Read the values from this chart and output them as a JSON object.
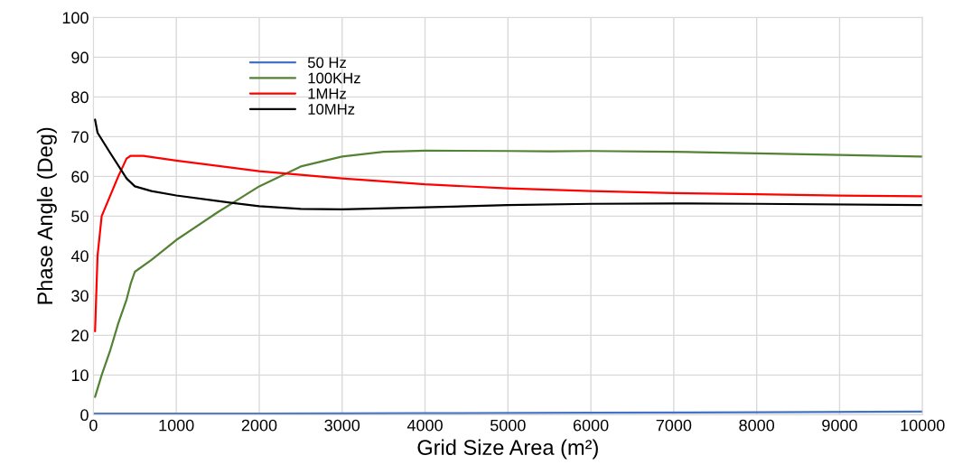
{
  "chart_data": {
    "type": "line",
    "xlabel": "Grid Size Area (m²)",
    "ylabel": "Phase Angle (Deg)",
    "xlim": [
      0,
      10000
    ],
    "ylim": [
      0,
      100
    ],
    "xticks": [
      0,
      1000,
      2000,
      3000,
      4000,
      5000,
      6000,
      7000,
      8000,
      9000,
      10000
    ],
    "yticks": [
      0,
      10,
      20,
      30,
      40,
      50,
      60,
      70,
      80,
      90,
      100
    ],
    "grid": true,
    "legend": "top left",
    "marker": "none",
    "line_style": "solid",
    "series": [
      {
        "name": "50 Hz",
        "color": "#4472c4",
        "x": [
          0,
          2000,
          4000,
          6000,
          8000,
          10000
        ],
        "values": [
          0.3,
          0.3,
          0.4,
          0.5,
          0.6,
          0.8
        ]
      },
      {
        "name": "100KHz",
        "color": "#548235",
        "x": [
          20,
          100,
          200,
          300,
          400,
          450,
          500,
          700,
          1000,
          1500,
          2000,
          2500,
          3000,
          3500,
          4000,
          5000,
          5500,
          6000,
          7000,
          8000,
          9000,
          10000
        ],
        "values": [
          4.5,
          10,
          16,
          23,
          29,
          33,
          36,
          39,
          44,
          51,
          57.5,
          62.5,
          65,
          66.2,
          66.5,
          66.4,
          66.3,
          66.4,
          66.2,
          65.8,
          65.4,
          65
        ]
      },
      {
        "name": "1MHz",
        "color": "#ff0000",
        "x": [
          20,
          50,
          100,
          200,
          300,
          400,
          450,
          600,
          1000,
          2000,
          3000,
          4000,
          5000,
          6000,
          7000,
          8000,
          9000,
          10000
        ],
        "values": [
          21,
          40,
          50,
          55,
          60,
          64.5,
          65.2,
          65.2,
          64,
          61.3,
          59.5,
          58,
          57,
          56.3,
          55.8,
          55.5,
          55.2,
          55
        ]
      },
      {
        "name": "10MHz",
        "color": "#000000",
        "x": [
          20,
          50,
          200,
          400,
          500,
          700,
          1000,
          1500,
          2000,
          2500,
          3000,
          4000,
          5000,
          6000,
          7000,
          8000,
          10000
        ],
        "values": [
          74.3,
          71,
          66,
          59.5,
          57.5,
          56.3,
          55.2,
          53.8,
          52.5,
          51.8,
          51.7,
          52.2,
          52.8,
          53.1,
          53.2,
          53.1,
          52.8
        ]
      }
    ]
  }
}
